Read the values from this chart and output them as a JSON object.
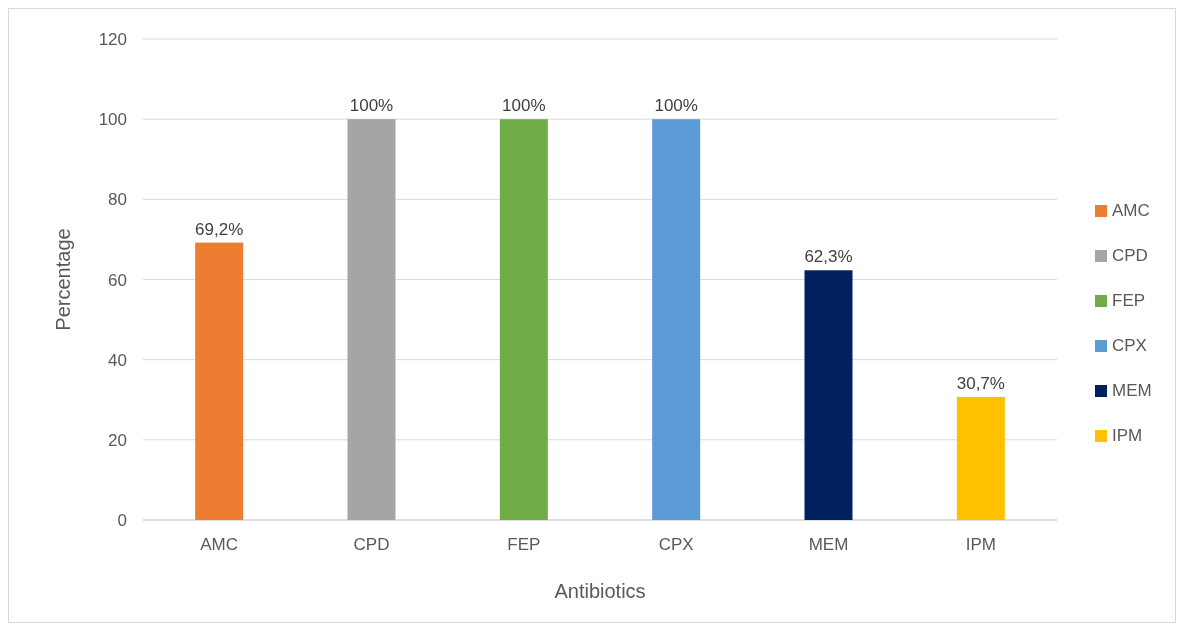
{
  "chart_data": {
    "type": "bar",
    "xlabel": "Antibiotics",
    "ylabel": "Percentage",
    "categories": [
      "AMC",
      "CPD",
      "FEP",
      "CPX",
      "MEM",
      "IPM"
    ],
    "series": [
      {
        "name": "AMC",
        "color": "#ed7d31",
        "values": [
          69.2,
          null,
          null,
          null,
          null,
          null
        ],
        "value_labels": [
          "69,2%",
          null,
          null,
          null,
          null,
          null
        ]
      },
      {
        "name": "CPD",
        "color": "#a5a5a5",
        "values": [
          null,
          100,
          null,
          null,
          null,
          null
        ],
        "value_labels": [
          null,
          "100%",
          null,
          null,
          null,
          null
        ]
      },
      {
        "name": "FEP",
        "color": "#70ad47",
        "values": [
          null,
          null,
          100,
          null,
          null,
          null
        ],
        "value_labels": [
          null,
          null,
          "100%",
          null,
          null,
          null
        ]
      },
      {
        "name": "CPX",
        "color": "#5b9bd5",
        "values": [
          null,
          null,
          null,
          100,
          null,
          null
        ],
        "value_labels": [
          null,
          null,
          null,
          "100%",
          null,
          null
        ]
      },
      {
        "name": "MEM",
        "color": "#002060",
        "values": [
          null,
          null,
          null,
          null,
          62.3,
          null
        ],
        "value_labels": [
          null,
          null,
          null,
          null,
          "62,3%",
          null
        ]
      },
      {
        "name": "IPM",
        "color": "#ffc000",
        "values": [
          null,
          null,
          null,
          null,
          null,
          30.7
        ],
        "value_labels": [
          null,
          null,
          null,
          null,
          null,
          "30,7%"
        ]
      }
    ],
    "ylim": [
      0,
      120
    ],
    "yticks": [
      0,
      20,
      40,
      60,
      80,
      100,
      120
    ],
    "grid": "y",
    "legend": "right"
  }
}
